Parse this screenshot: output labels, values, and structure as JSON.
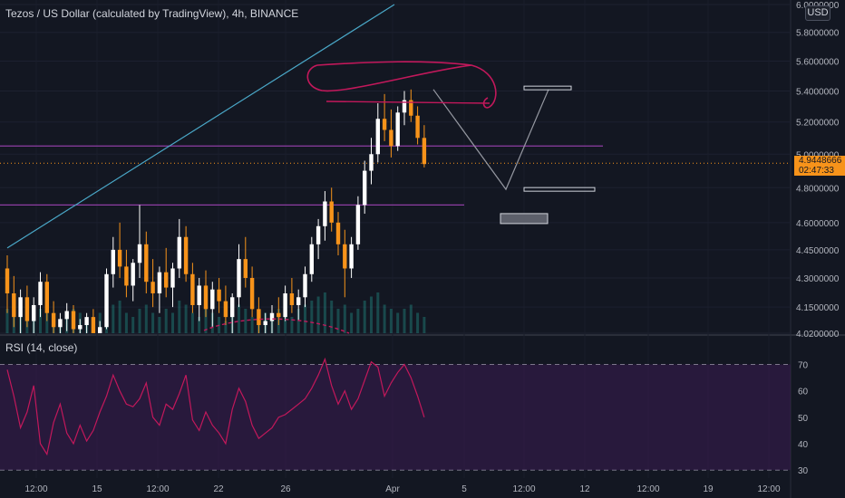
{
  "title": "Tezos / US Dollar (calculated by TradingView), 4h, BINANCE",
  "currency": "USD",
  "last_price": {
    "value": "4.9448666",
    "countdown": "02:47:33"
  },
  "colors": {
    "background": "#131722",
    "up": "#ffffff",
    "down": "#f7931a",
    "volume": "#26a69a",
    "rsi_line": "#c2185b",
    "rsi_band": "#3a1c52",
    "trendline": "#4aa8c8",
    "level_line": "#8e3ea3",
    "annotation": "#c2185b"
  },
  "chart_data": [
    {
      "type": "candlestick",
      "title": "Tezos / US Dollar (calculated by TradingView), 4h, BINANCE",
      "y_axis": {
        "scale": "log",
        "range": [
          4.02,
          6.0
        ],
        "ticks": [
          "6.0000000",
          "5.8000000",
          "5.6000000",
          "5.4000000",
          "5.2000000",
          "5.0000000",
          "4.8000000",
          "4.6000000",
          "4.4500000",
          "4.3000000",
          "4.1500000",
          "4.0200000"
        ]
      },
      "x_axis": {
        "ticks": [
          "12:00",
          "15",
          "12:00",
          "22",
          "26",
          "Apr",
          "5",
          "12:00",
          "12",
          "12:00",
          "19",
          "12:00"
        ]
      },
      "last_price": 4.9448666,
      "horizontal_levels": [
        5.05,
        4.7
      ],
      "trendline": {
        "from": 4.46,
        "to": 6.0
      },
      "projection_path": [
        5.41,
        4.79,
        5.41
      ],
      "target_levels": [
        5.42,
        4.79,
        4.62
      ],
      "candles_ohlc": [
        [
          4.35,
          4.42,
          4.12,
          4.22
        ],
        [
          4.22,
          4.31,
          4.05,
          4.1
        ],
        [
          4.1,
          4.24,
          4.02,
          4.2
        ],
        [
          4.2,
          4.26,
          4.05,
          4.08
        ],
        [
          4.08,
          4.2,
          4.02,
          4.16
        ],
        [
          4.16,
          4.33,
          4.1,
          4.28
        ],
        [
          4.28,
          4.32,
          4.08,
          4.12
        ],
        [
          4.12,
          4.18,
          4.02,
          4.05
        ],
        [
          4.05,
          4.12,
          3.99,
          4.09
        ],
        [
          4.09,
          4.17,
          4.03,
          4.13
        ],
        [
          4.13,
          4.16,
          4.02,
          4.04
        ],
        [
          4.04,
          4.09,
          3.98,
          4.06
        ],
        [
          4.06,
          4.12,
          4.01,
          4.1
        ],
        [
          4.1,
          4.14,
          4.0,
          4.02
        ],
        [
          4.02,
          4.08,
          3.97,
          4.05
        ],
        [
          4.05,
          4.35,
          4.04,
          4.32
        ],
        [
          4.32,
          4.52,
          4.25,
          4.45
        ],
        [
          4.45,
          4.6,
          4.3,
          4.36
        ],
        [
          4.36,
          4.45,
          4.2,
          4.26
        ],
        [
          4.26,
          4.4,
          4.18,
          4.38
        ],
        [
          4.38,
          4.7,
          4.3,
          4.48
        ],
        [
          4.48,
          4.55,
          4.22,
          4.28
        ],
        [
          4.28,
          4.4,
          4.15,
          4.22
        ],
        [
          4.22,
          4.36,
          4.12,
          4.33
        ],
        [
          4.33,
          4.46,
          4.2,
          4.25
        ],
        [
          4.25,
          4.38,
          4.15,
          4.35
        ],
        [
          4.35,
          4.62,
          4.3,
          4.52
        ],
        [
          4.52,
          4.58,
          4.28,
          4.32
        ],
        [
          4.32,
          4.38,
          4.12,
          4.16
        ],
        [
          4.16,
          4.3,
          4.08,
          4.26
        ],
        [
          4.26,
          4.34,
          4.1,
          4.14
        ],
        [
          4.14,
          4.28,
          4.05,
          4.24
        ],
        [
          4.24,
          4.3,
          4.12,
          4.18
        ],
        [
          4.18,
          4.26,
          4.06,
          4.1
        ],
        [
          4.1,
          4.22,
          4.02,
          4.2
        ],
        [
          4.2,
          4.48,
          4.15,
          4.4
        ],
        [
          4.4,
          4.52,
          4.25,
          4.3
        ],
        [
          4.3,
          4.36,
          4.1,
          4.14
        ],
        [
          4.14,
          4.2,
          4.02,
          4.06
        ],
        [
          4.06,
          4.12,
          3.98,
          4.08
        ],
        [
          4.08,
          4.16,
          4.02,
          4.12
        ],
        [
          4.12,
          4.2,
          4.06,
          4.1
        ],
        [
          4.1,
          4.26,
          4.08,
          4.22
        ],
        [
          4.22,
          4.3,
          4.12,
          4.16
        ],
        [
          4.16,
          4.24,
          4.08,
          4.2
        ],
        [
          4.2,
          4.36,
          4.15,
          4.32
        ],
        [
          4.32,
          4.52,
          4.28,
          4.48
        ],
        [
          4.48,
          4.62,
          4.4,
          4.58
        ],
        [
          4.58,
          4.78,
          4.5,
          4.72
        ],
        [
          4.72,
          4.8,
          4.55,
          4.6
        ],
        [
          4.6,
          4.66,
          4.42,
          4.48
        ],
        [
          4.48,
          4.56,
          4.2,
          4.35
        ],
        [
          4.35,
          4.52,
          4.3,
          4.48
        ],
        [
          4.48,
          4.75,
          4.45,
          4.7
        ],
        [
          4.7,
          4.96,
          4.65,
          4.9
        ],
        [
          4.9,
          5.1,
          4.82,
          5.0
        ],
        [
          5.0,
          5.32,
          4.95,
          5.22
        ],
        [
          5.22,
          5.38,
          5.08,
          5.15
        ],
        [
          5.15,
          5.28,
          4.98,
          5.05
        ],
        [
          5.05,
          5.3,
          5.02,
          5.26
        ],
        [
          5.26,
          5.4,
          5.18,
          5.34
        ],
        [
          5.34,
          5.41,
          5.2,
          5.24
        ],
        [
          5.24,
          5.3,
          5.06,
          5.1
        ],
        [
          5.1,
          5.18,
          4.92,
          4.94
        ]
      ],
      "volume_relative": [
        0.6,
        0.8,
        0.5,
        0.7,
        0.4,
        0.6,
        0.9,
        0.5,
        0.3,
        0.4,
        0.6,
        0.5,
        0.3,
        0.4,
        0.5,
        0.6,
        0.7,
        0.8,
        0.5,
        0.4,
        0.6,
        0.7,
        0.5,
        0.4,
        0.6,
        0.5,
        0.8,
        0.7,
        0.5,
        0.4,
        0.6,
        0.5,
        0.4,
        0.3,
        0.5,
        0.7,
        0.6,
        0.4,
        0.3,
        0.5,
        0.4,
        0.6,
        0.5,
        0.4,
        0.6,
        0.7,
        0.8,
        0.9,
        1.0,
        0.8,
        0.6,
        0.7,
        0.5,
        0.6,
        0.8,
        0.9,
        1.0,
        0.7,
        0.6,
        0.5,
        0.6,
        0.7,
        0.5,
        0.4
      ]
    },
    {
      "type": "line",
      "title": "RSI (14, close)",
      "y_axis": {
        "range": [
          28,
          76
        ],
        "ticks": [
          "70",
          "60",
          "50",
          "40",
          "30"
        ]
      },
      "bands": {
        "overbought": 70,
        "oversold": 30
      },
      "rsi_values": [
        68,
        58,
        46,
        52,
        62,
        40,
        36,
        48,
        55,
        44,
        40,
        47,
        41,
        45,
        52,
        58,
        66,
        60,
        55,
        54,
        57,
        63,
        50,
        47,
        55,
        53,
        59,
        66,
        49,
        45,
        52,
        47,
        44,
        40,
        53,
        61,
        56,
        47,
        42,
        44,
        46,
        50,
        51,
        53,
        55,
        57,
        61,
        66,
        72,
        62,
        55,
        60,
        53,
        57,
        64,
        71,
        69,
        58,
        63,
        67,
        70,
        65,
        58,
        50
      ]
    }
  ]
}
